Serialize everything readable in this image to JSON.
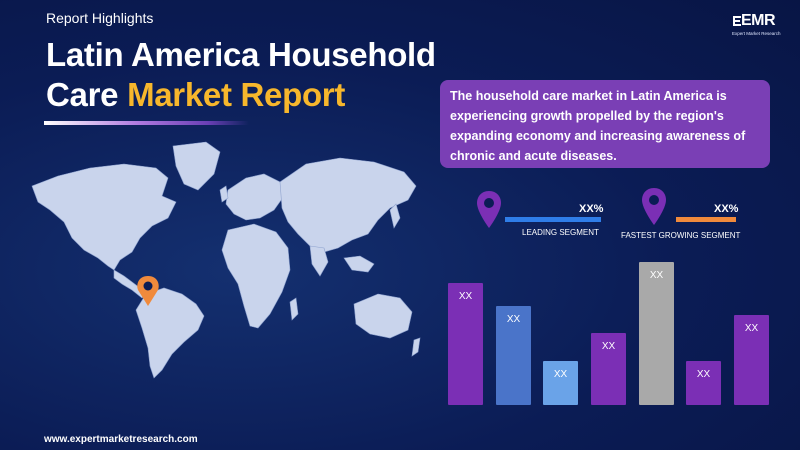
{
  "header": {
    "eyebrow": "Report Highlights",
    "title_line1": "Latin America Household",
    "title_line2_plain": "Care ",
    "title_line2_highlight": "Market Report"
  },
  "logo": {
    "text": "EMR",
    "tagline": "Expert Market Research"
  },
  "description": "The household care market in Latin America is experiencing growth propelled by the region's expanding economy and increasing awareness of chronic and acute diseases.",
  "segments": {
    "leading": {
      "value": "XX%",
      "label": "LEADING SEGMENT",
      "color": "#2f7de8"
    },
    "fastest": {
      "value": "XX%",
      "label": "FASTEST GROWING SEGMENT",
      "color": "#f08a3c"
    }
  },
  "bars": [
    {
      "label": "XX",
      "color": "#7b2fb5"
    },
    {
      "label": "XX",
      "color": "#4a74c9"
    },
    {
      "label": "XX",
      "color": "#6aa3e8"
    },
    {
      "label": "XX",
      "color": "#7b2fb5"
    },
    {
      "label": "XX",
      "color": "#a9a9a9"
    },
    {
      "label": "XX",
      "color": "#7b2fb5"
    },
    {
      "label": "XX",
      "color": "#7b2fb5"
    }
  ],
  "map": {
    "marker_color": "#f08a3c",
    "land_color": "#c9d4ec"
  },
  "footer": {
    "url": "www.expertmarketresearch.com"
  }
}
